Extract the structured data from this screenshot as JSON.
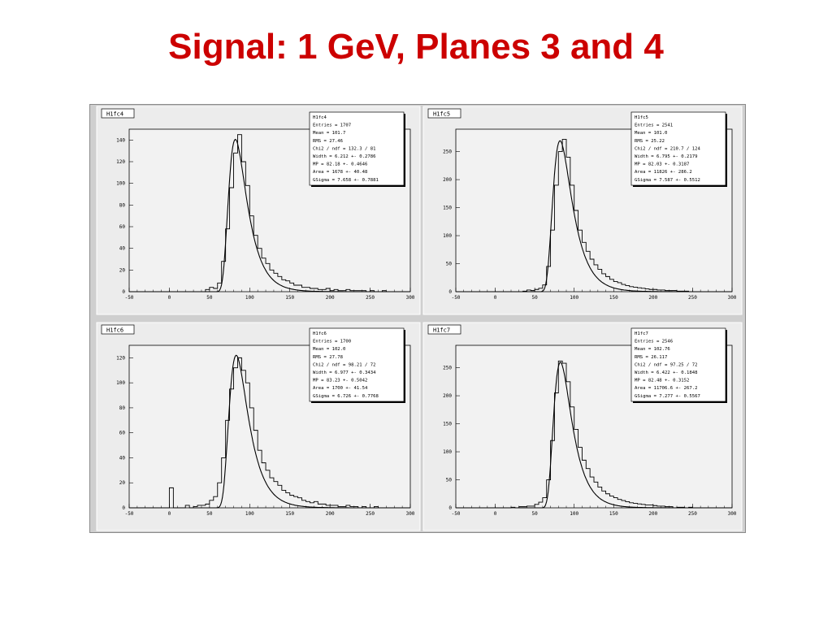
{
  "slide": {
    "title": "Signal: 1 GeV, Planes 3 and 4",
    "title_color": "#cc0000"
  },
  "chart_data": [
    {
      "type": "histogram",
      "name": "H1fc4",
      "xlim": [
        -50,
        300
      ],
      "ylim": [
        0,
        150
      ],
      "x_ticks": [
        -50,
        0,
        50,
        100,
        150,
        200,
        250,
        300
      ],
      "y_ticks": [
        0,
        20,
        40,
        60,
        80,
        100,
        120,
        140
      ],
      "stats": [
        "H1fc4",
        "Entries = 1707",
        "Mean  = 101.7",
        "RMS   = 27.46",
        "Chi2 / ndf = 132.3 / 81",
        "Width  = 6.212 +- 0.2786",
        "MP     = 82.18 +- 0.4646",
        "Area   = 1678 +- 40.48",
        "GSigma = 7.658 +- 0.7881"
      ],
      "fit": {
        "mp": 82.18,
        "width": 6.212,
        "gsigma": 7.658,
        "peak": 138
      },
      "hist": {
        "bin_width": 5,
        "bins": [
          [
            45,
            2
          ],
          [
            50,
            4
          ],
          [
            55,
            3
          ],
          [
            60,
            8
          ],
          [
            65,
            28
          ],
          [
            70,
            58
          ],
          [
            75,
            96
          ],
          [
            80,
            128
          ],
          [
            85,
            145
          ],
          [
            90,
            120
          ],
          [
            95,
            98
          ],
          [
            100,
            70
          ],
          [
            105,
            52
          ],
          [
            110,
            40
          ],
          [
            115,
            31
          ],
          [
            120,
            26
          ],
          [
            125,
            20
          ],
          [
            130,
            17
          ],
          [
            135,
            14
          ],
          [
            140,
            11
          ],
          [
            145,
            10
          ],
          [
            150,
            8
          ],
          [
            155,
            6
          ],
          [
            160,
            6
          ],
          [
            165,
            4
          ],
          [
            170,
            4
          ],
          [
            175,
            3
          ],
          [
            180,
            3
          ],
          [
            185,
            2
          ],
          [
            190,
            2
          ],
          [
            195,
            3
          ],
          [
            200,
            1
          ],
          [
            205,
            2
          ],
          [
            210,
            1
          ],
          [
            215,
            1
          ],
          [
            220,
            2
          ],
          [
            225,
            1
          ],
          [
            230,
            1
          ],
          [
            235,
            1
          ],
          [
            240,
            1
          ],
          [
            250,
            1
          ],
          [
            265,
            1
          ]
        ]
      }
    },
    {
      "type": "histogram",
      "name": "H1fc5",
      "xlim": [
        -50,
        300
      ],
      "ylim": [
        0,
        290
      ],
      "x_ticks": [
        -50,
        0,
        50,
        100,
        150,
        200,
        250,
        300
      ],
      "y_ticks": [
        0,
        50,
        100,
        150,
        200,
        250
      ],
      "stats": [
        "H1fc5",
        "Entries = 2541",
        "Mean  = 101.0",
        "RMS   = 25.22",
        "Chi2 / ndf = 210.7 / 124",
        "Width  = 6.795 +- 0.2179",
        "MP     = 82.03 +- 0.3187",
        "Area   = 11826 +- 286.2",
        "GSigma = 7.587 +- 0.5512"
      ],
      "fit": {
        "mp": 82.03,
        "width": 6.795,
        "gsigma": 7.587,
        "peak": 265
      },
      "hist": {
        "bin_width": 5,
        "bins": [
          [
            35,
            1
          ],
          [
            40,
            3
          ],
          [
            45,
            2
          ],
          [
            50,
            4
          ],
          [
            55,
            6
          ],
          [
            60,
            12
          ],
          [
            65,
            45
          ],
          [
            70,
            110
          ],
          [
            75,
            190
          ],
          [
            80,
            250
          ],
          [
            85,
            272
          ],
          [
            90,
            240
          ],
          [
            95,
            190
          ],
          [
            100,
            145
          ],
          [
            105,
            110
          ],
          [
            110,
            88
          ],
          [
            115,
            72
          ],
          [
            120,
            58
          ],
          [
            125,
            48
          ],
          [
            130,
            40
          ],
          [
            135,
            32
          ],
          [
            140,
            27
          ],
          [
            145,
            22
          ],
          [
            150,
            18
          ],
          [
            155,
            16
          ],
          [
            160,
            13
          ],
          [
            165,
            11
          ],
          [
            170,
            9
          ],
          [
            175,
            8
          ],
          [
            180,
            7
          ],
          [
            185,
            6
          ],
          [
            190,
            5
          ],
          [
            195,
            4
          ],
          [
            200,
            4
          ],
          [
            205,
            3
          ],
          [
            210,
            3
          ],
          [
            215,
            2
          ],
          [
            220,
            2
          ],
          [
            225,
            2
          ],
          [
            230,
            1
          ],
          [
            235,
            1
          ],
          [
            240,
            1
          ]
        ]
      }
    },
    {
      "type": "histogram",
      "name": "H1fc6",
      "xlim": [
        -50,
        300
      ],
      "ylim": [
        0,
        130
      ],
      "x_ticks": [
        -50,
        0,
        50,
        100,
        150,
        200,
        250,
        300
      ],
      "y_ticks": [
        0,
        20,
        40,
        60,
        80,
        100,
        120
      ],
      "stats": [
        "H1fc6",
        "Entries = 1700",
        "Mean  = 102.0",
        "RMS   = 27.78",
        "Chi2 / ndf = 98.21 / 72",
        "Width  = 6.977 +- 0.3434",
        "MP     = 83.23 +- 0.5042",
        "Area   = 1700 +- 41.54",
        "GSigma = 6.726 +- 0.7768"
      ],
      "fit": {
        "mp": 83.23,
        "width": 6.977,
        "gsigma": 6.726,
        "peak": 120
      },
      "hist": {
        "bin_width": 5,
        "bins": [
          [
            0,
            16
          ],
          [
            20,
            2
          ],
          [
            30,
            1
          ],
          [
            35,
            2
          ],
          [
            40,
            2
          ],
          [
            45,
            3
          ],
          [
            50,
            6
          ],
          [
            55,
            9
          ],
          [
            60,
            20
          ],
          [
            65,
            40
          ],
          [
            70,
            70
          ],
          [
            75,
            95
          ],
          [
            80,
            112
          ],
          [
            85,
            120
          ],
          [
            90,
            110
          ],
          [
            95,
            100
          ],
          [
            100,
            80
          ],
          [
            105,
            62
          ],
          [
            110,
            46
          ],
          [
            115,
            36
          ],
          [
            120,
            30
          ],
          [
            125,
            24
          ],
          [
            130,
            21
          ],
          [
            135,
            18
          ],
          [
            140,
            14
          ],
          [
            145,
            12
          ],
          [
            150,
            10
          ],
          [
            155,
            9
          ],
          [
            160,
            8
          ],
          [
            165,
            6
          ],
          [
            170,
            5
          ],
          [
            175,
            4
          ],
          [
            180,
            5
          ],
          [
            185,
            3
          ],
          [
            190,
            3
          ],
          [
            195,
            2
          ],
          [
            200,
            2
          ],
          [
            205,
            2
          ],
          [
            210,
            1
          ],
          [
            215,
            1
          ],
          [
            220,
            2
          ],
          [
            225,
            1
          ],
          [
            230,
            1
          ],
          [
            240,
            1
          ],
          [
            255,
            1
          ]
        ]
      }
    },
    {
      "type": "histogram",
      "name": "H1fc7",
      "xlim": [
        -50,
        300
      ],
      "ylim": [
        0,
        290
      ],
      "x_ticks": [
        -50,
        0,
        50,
        100,
        150,
        200,
        250,
        300
      ],
      "y_ticks": [
        0,
        50,
        100,
        150,
        200,
        250
      ],
      "stats": [
        "H1fc7",
        "Entries = 2546",
        "Mean  = 102.76",
        "RMS   = 26.117",
        "Chi2 / ndf = 97.25 / 72",
        "Width  = 6.422 +- 0.1848",
        "MP     = 82.48 +- 0.3152",
        "Area   = 11706.6 +- 267.2",
        "GSigma = 7.277 +- 0.5567"
      ],
      "fit": {
        "mp": 82.48,
        "width": 6.422,
        "gsigma": 7.277,
        "peak": 255
      },
      "hist": {
        "bin_width": 5,
        "bins": [
          [
            20,
            1
          ],
          [
            30,
            2
          ],
          [
            35,
            2
          ],
          [
            40,
            3
          ],
          [
            45,
            3
          ],
          [
            50,
            6
          ],
          [
            55,
            10
          ],
          [
            60,
            18
          ],
          [
            65,
            50
          ],
          [
            70,
            120
          ],
          [
            75,
            205
          ],
          [
            80,
            262
          ],
          [
            85,
            258
          ],
          [
            90,
            225
          ],
          [
            95,
            180
          ],
          [
            100,
            140
          ],
          [
            105,
            108
          ],
          [
            110,
            85
          ],
          [
            115,
            70
          ],
          [
            120,
            55
          ],
          [
            125,
            46
          ],
          [
            130,
            37
          ],
          [
            135,
            30
          ],
          [
            140,
            25
          ],
          [
            145,
            21
          ],
          [
            150,
            18
          ],
          [
            155,
            15
          ],
          [
            160,
            13
          ],
          [
            165,
            11
          ],
          [
            170,
            9
          ],
          [
            175,
            8
          ],
          [
            180,
            7
          ],
          [
            185,
            6
          ],
          [
            190,
            5
          ],
          [
            195,
            5
          ],
          [
            200,
            4
          ],
          [
            205,
            3
          ],
          [
            210,
            3
          ],
          [
            215,
            2
          ],
          [
            220,
            2
          ],
          [
            230,
            1
          ],
          [
            235,
            1
          ],
          [
            245,
            1
          ]
        ]
      }
    }
  ]
}
